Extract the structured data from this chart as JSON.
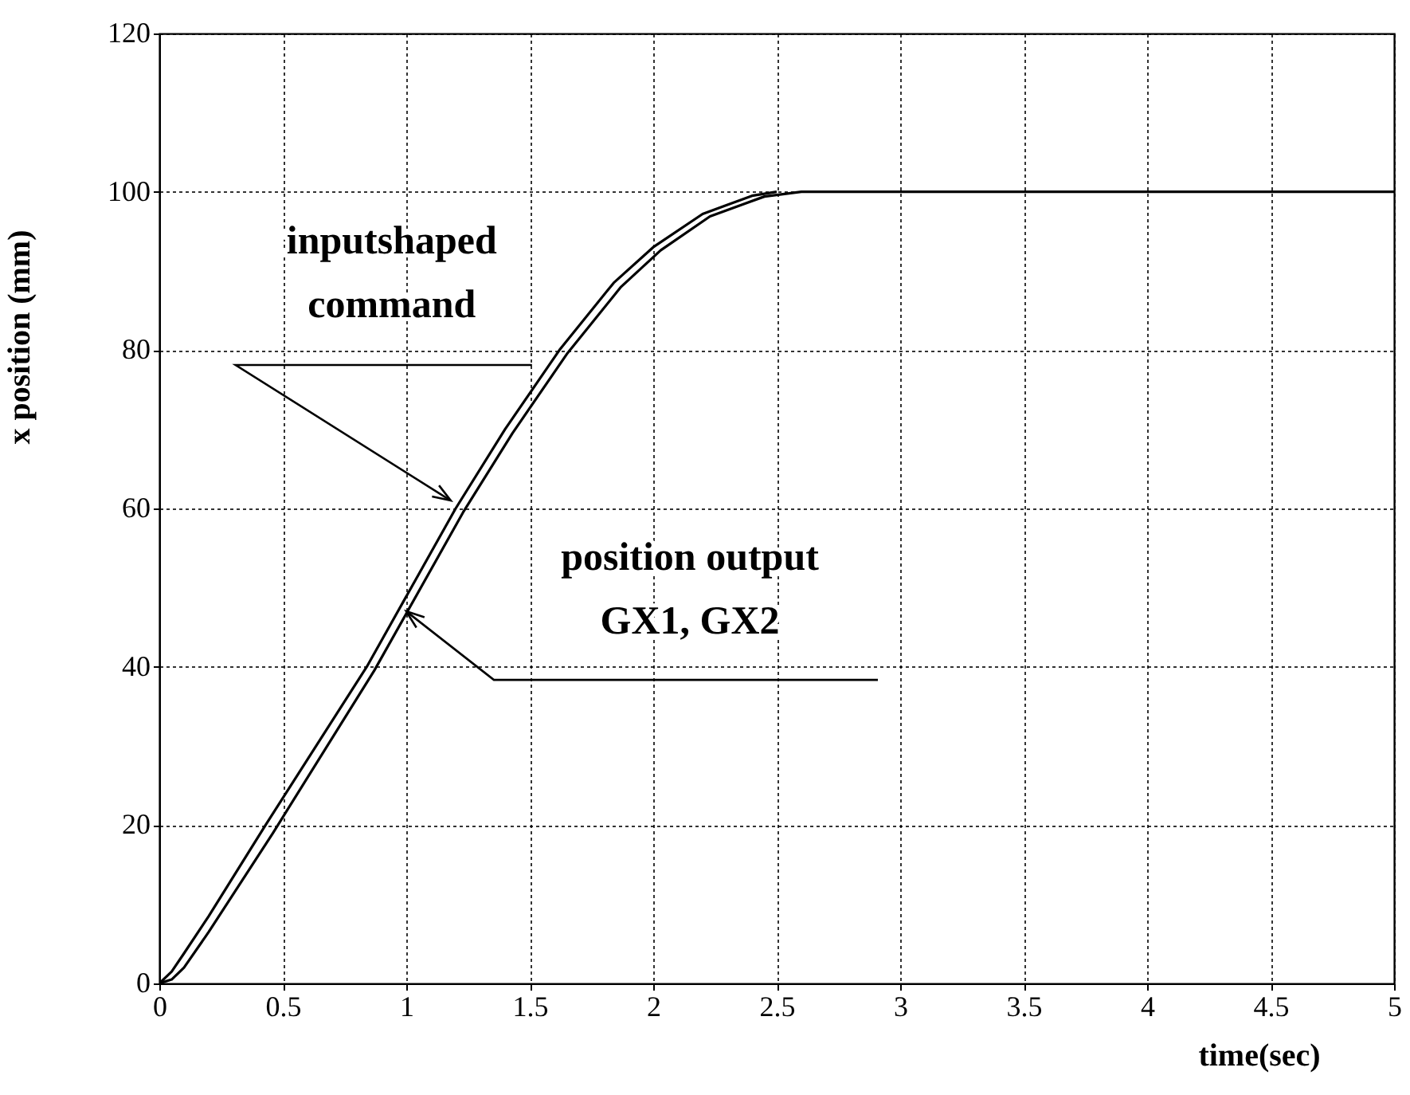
{
  "chart_data": {
    "type": "line",
    "xlabel": "time(sec)",
    "ylabel": "x position (mm)",
    "xlim": [
      0,
      5
    ],
    "xticks": [
      0,
      0.5,
      1,
      1.5,
      2,
      2.5,
      3,
      3.5,
      4,
      4.5,
      5
    ],
    "ylim": [
      0,
      120
    ],
    "yticks": [
      0,
      20,
      40,
      60,
      80,
      100,
      120
    ],
    "grid": true,
    "line_style": "solid",
    "series": [
      {
        "color": "#000000",
        "x": [
          0,
          0.05,
          0.1,
          0.2,
          0.43,
          0.84,
          1.2,
          1.4,
          1.62,
          1.84,
          2.0,
          2.2,
          2.4,
          2.5
        ],
        "values": [
          0,
          1.5,
          3.8,
          8.5,
          20,
          40,
          60,
          70,
          80,
          88.5,
          93,
          97.2,
          99.5,
          100
        ]
      },
      {
        "color": "#000000",
        "x": [
          0,
          0.05,
          0.1,
          0.2,
          0.46,
          0.87,
          1.23,
          1.43,
          1.65,
          1.87,
          2.03,
          2.23,
          2.45,
          2.6,
          5
        ],
        "values": [
          0,
          0.5,
          2,
          6.5,
          19,
          39.5,
          59.5,
          69.5,
          79.5,
          88,
          92.6,
          96.9,
          99.4,
          100,
          100
        ]
      }
    ],
    "annotations": [
      {
        "text": "inputshaped\ncommand",
        "x": 1.18,
        "y": 61
      },
      {
        "text": "position output\nGX1, GX2",
        "x": 1.0,
        "y": 47
      }
    ]
  }
}
